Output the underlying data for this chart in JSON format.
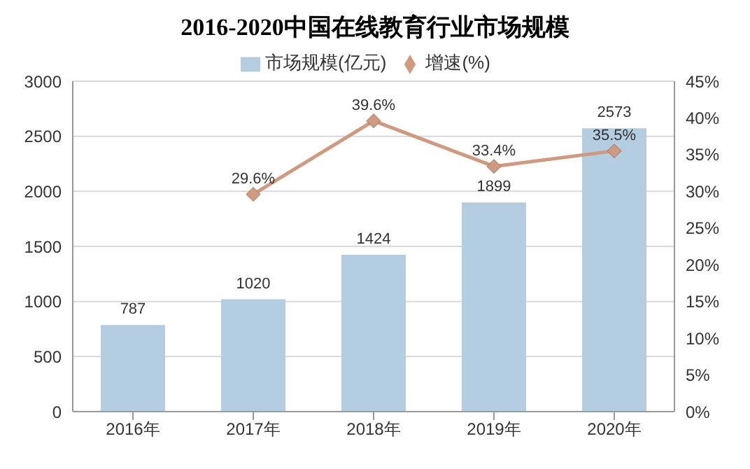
{
  "chart_data": {
    "type": "bar",
    "title": "2016-2020中国在线教育行业市场规模",
    "categories": [
      "2016年",
      "2017年",
      "2018年",
      "2019年",
      "2020年"
    ],
    "series": [
      {
        "name": "市场规模(亿元)",
        "color": "#b4cde1",
        "values": [
          787,
          1020,
          1424,
          1899,
          2573
        ],
        "value_labels": [
          "787",
          "1020",
          "1424",
          "1899",
          "2573"
        ]
      },
      {
        "name": "增速(%)",
        "type": "line",
        "axis": "y2",
        "color": "#d09a80",
        "values": [
          null,
          29.6,
          39.6,
          33.4,
          35.5
        ],
        "value_labels": [
          null,
          "29.6%",
          "39.6%",
          "33.4%",
          "35.5%"
        ]
      }
    ],
    "ylim": [
      0,
      3000
    ],
    "yticks": [
      0,
      500,
      1000,
      1500,
      2000,
      2500,
      3000
    ],
    "y2lim": [
      0,
      45
    ],
    "y2ticks": [
      {
        "value": 0,
        "label": "0%"
      },
      {
        "value": 5,
        "label": "5%"
      },
      {
        "value": 10,
        "label": "10%"
      },
      {
        "value": 15,
        "label": "15%"
      },
      {
        "value": 20,
        "label": "20%"
      },
      {
        "value": 25,
        "label": "25%"
      },
      {
        "value": 30,
        "label": "30%"
      },
      {
        "value": 35,
        "label": "35%"
      },
      {
        "value": 40,
        "label": "40%"
      },
      {
        "value": 45,
        "label": "45%"
      }
    ],
    "grid": "y",
    "legend": "top",
    "marker": "diamond",
    "line_style": "solid"
  }
}
